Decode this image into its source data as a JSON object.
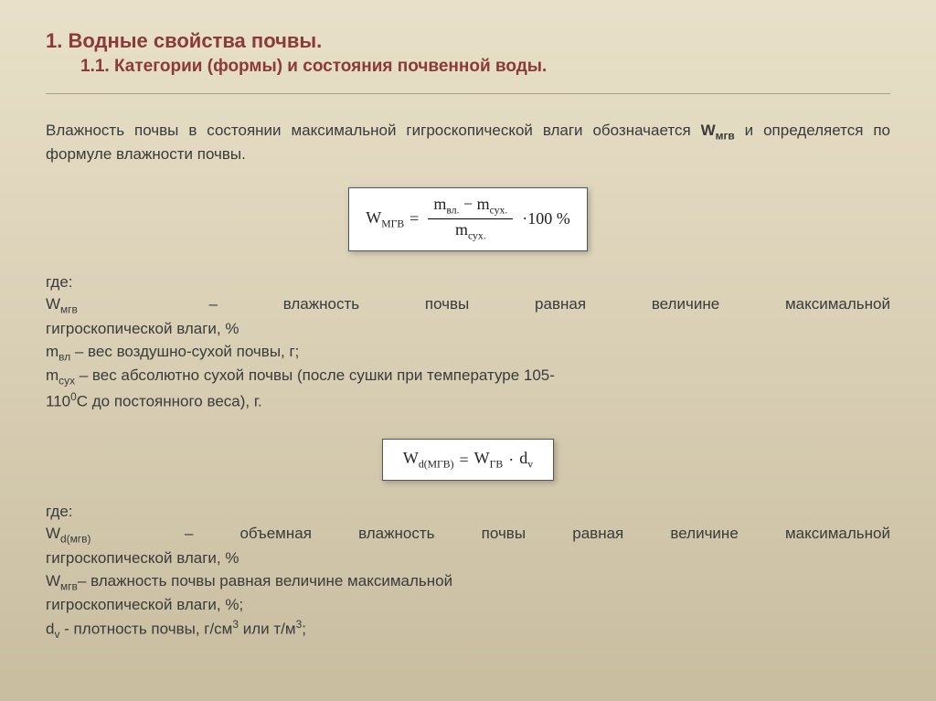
{
  "heading1": "1. Водные свойства почвы.",
  "heading2": "1.1. Категории (формы) и состояния почвенной воды.",
  "intro": {
    "pre": "Влажность почвы в состоянии максимальной гигроскопической влаги обозначается ",
    "symbol_main": "W",
    "symbol_sub": "мгв",
    "post": " и определяется по формуле влажности почвы."
  },
  "formula1": {
    "lhs_main": "W",
    "lhs_sub": "МГВ",
    "num": {
      "a_main": "m",
      "a_sub": "вл.",
      "op": " − ",
      "b_main": "m",
      "b_sub": "сух."
    },
    "den": {
      "main": "m",
      "sub": "сух."
    },
    "suffix": "·100 %"
  },
  "defs1": {
    "where": "где:",
    "w_line_a": {
      "sym_main": "W",
      "sym_sub": "мгв",
      "mid": "– влажность почвы равная величине максимальной"
    },
    "w_line_b": "гигроскопической влаги, %",
    "mvl": {
      "sym_main": "m",
      "sym_sub": "вл",
      "rest": " – вес воздушно-сухой почвы, г;"
    },
    "msux_a": {
      "sym_main": "m",
      "sym_sub": "сух",
      "rest": " – вес абсолютно сухой почвы (после сушки при температуре 105-"
    },
    "msux_b_pre": "110",
    "msux_b_sup": "0",
    "msux_b_post": "С до постоянного веса), г."
  },
  "formula2": {
    "lhs_main": "W",
    "lhs_sub": "d(МГВ)",
    "a_main": "W",
    "a_sub": "ГВ",
    "op": " · ",
    "b_main": "d",
    "b_sub": "v"
  },
  "defs2": {
    "where": "где:",
    "wd_line_a": {
      "sym_main": "W",
      "sym_sub": "d(мгв)",
      "mid": "– объемная влажность почвы равная величине максимальной"
    },
    "wd_line_b": "гигроскопической влаги, %",
    "wmgv_a": {
      "sym_main": "W",
      "sym_sub": "мгв",
      "rest": "– влажность почвы равная величине максимальной"
    },
    "wmgv_b": "гигроскопической влаги, %;",
    "dv": {
      "sym_main": "d",
      "sym_sub": "v",
      "rest_pre": " - плотность почвы, г/см",
      "sup1": "3",
      "rest_mid": " или т/м",
      "sup2": "3",
      "rest_post": ";"
    }
  },
  "colors": {
    "heading": "#8b3a3a",
    "text": "#3a3a3a",
    "bg_top": "#e8e0c8",
    "bg_bottom": "#c8bd9f",
    "formula_bg": "#ffffff"
  }
}
